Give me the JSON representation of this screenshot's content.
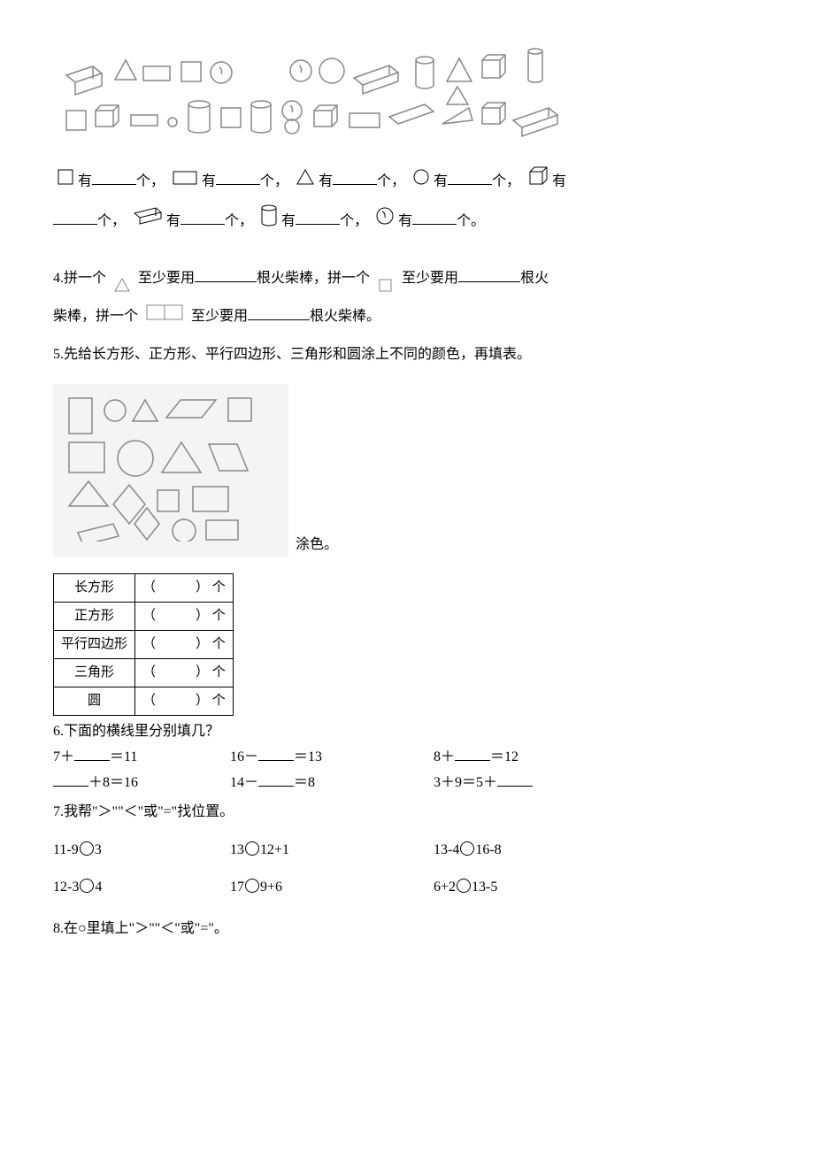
{
  "shapeCounts": {
    "lines": [
      {
        "parts": [
          {
            "shape": "square",
            "t": "有"
          },
          {
            "blank": true
          },
          {
            "t": "个，"
          },
          {
            "shape": "rect",
            "t": "有"
          },
          {
            "blank": true
          },
          {
            "t": "个，"
          },
          {
            "shape": "triangle",
            "t": "有"
          },
          {
            "blank": true
          },
          {
            "t": "个，"
          },
          {
            "shape": "circle",
            "t": "有"
          },
          {
            "blank": true
          },
          {
            "t": "个，"
          },
          {
            "shape": "cube",
            "t": "有"
          }
        ]
      },
      {
        "parts": [
          {
            "blank": true
          },
          {
            "t": "个，"
          },
          {
            "shape": "cuboid",
            "t": "有"
          },
          {
            "blank": true
          },
          {
            "t": "个，"
          },
          {
            "shape": "cylinder",
            "t": "有"
          },
          {
            "blank": true
          },
          {
            "t": "个，"
          },
          {
            "shape": "sphere",
            "t": "有"
          },
          {
            "blank": true
          },
          {
            "t": "个。"
          }
        ]
      }
    ]
  },
  "q4": {
    "prefix": "4.拼一个",
    "mid1": "至少要用",
    "mid2": "根火柴棒，拼一个",
    "mid3": "至少要用",
    "mid4": "根火",
    "line2a": "柴棒，拼一个",
    "line2b": "至少要用",
    "line2c": "根火柴棒。"
  },
  "q5": {
    "text": "5.先给长方形、正方形、平行四边形、三角形和圆涂上不同的颜色，再填表。",
    "suffix": "涂色。"
  },
  "table": {
    "rows": [
      {
        "name": "长方形",
        "unit": "个"
      },
      {
        "name": "正方形",
        "unit": "个"
      },
      {
        "name": "平行四边形",
        "unit": "个"
      },
      {
        "name": "三角形",
        "unit": "个"
      },
      {
        "name": "圆",
        "unit": "个"
      }
    ],
    "blank": "（　　　）"
  },
  "q6": {
    "title": "6.下面的横线里分别填几？",
    "rows": [
      [
        "7＋_____＝11",
        "16－_____＝13",
        "8＋_____＝12"
      ],
      [
        "_____＋8＝16",
        "14－_____＝8",
        "3＋9＝5＋_____"
      ]
    ]
  },
  "q7": {
    "title": "7.我帮\"＞\"\"＜\"或\"=\"找位置。",
    "rows": [
      [
        "11-9○3",
        "13○12+1",
        "13-4○16-8"
      ],
      [
        "12-3○4",
        "17○9+6",
        "6+2○13-5"
      ]
    ]
  },
  "q8": {
    "text": "8.在○里填上\"＞\"\"＜\"或\"=\"。"
  }
}
